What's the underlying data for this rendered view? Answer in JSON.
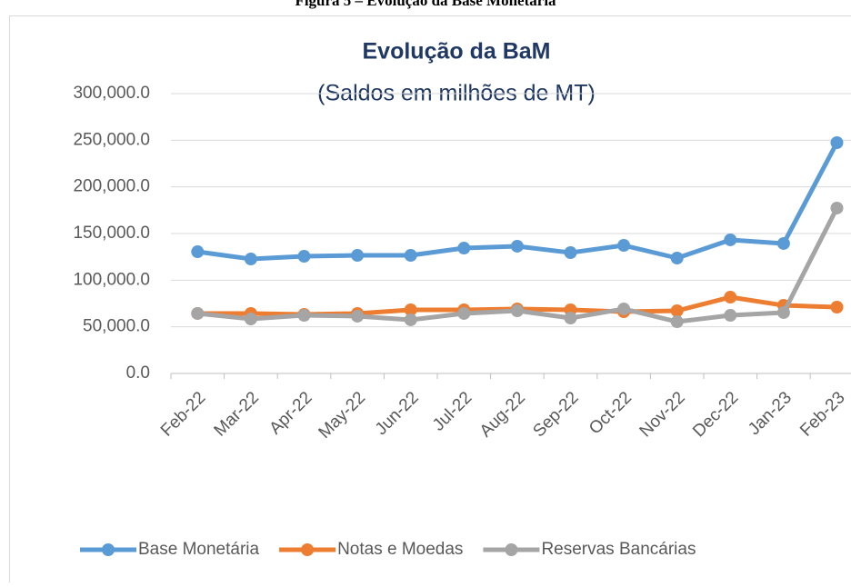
{
  "caption": "Figura 5 – Evolução da Base Monetária",
  "chart_data": {
    "type": "line",
    "title": "Evolução da BaM",
    "subtitle": "(Saldos em milhões de MT)",
    "categories": [
      "Feb-22",
      "Mar-22",
      "Apr-22",
      "May-22",
      "Jun-22",
      "Jul-22",
      "Aug-22",
      "Sep-22",
      "Oct-22",
      "Nov-22",
      "Dec-22",
      "Jan-23",
      "Feb-23"
    ],
    "series": [
      {
        "name": "Base Monetária",
        "color": "#5b9bd5",
        "values": [
          130500,
          122700,
          125600,
          126600,
          126600,
          134400,
          136400,
          129500,
          137300,
          123700,
          143200,
          139300,
          247400
        ]
      },
      {
        "name": "Notas e Moedas",
        "color": "#ed7d31",
        "values": [
          64300,
          64300,
          63300,
          64300,
          68200,
          68200,
          69200,
          68200,
          66200,
          67200,
          81800,
          73000,
          71100
        ]
      },
      {
        "name": "Reservas Bancárias",
        "color": "#a5a5a5",
        "values": [
          64300,
          58400,
          62300,
          61400,
          57500,
          64300,
          67200,
          59400,
          69200,
          55500,
          62300,
          65300,
          177300
        ]
      }
    ],
    "ylim": [
      0,
      300000
    ],
    "yticks": [
      {
        "value": 0,
        "label": "0.0"
      },
      {
        "value": 50000,
        "label": "50,000.0"
      },
      {
        "value": 100000,
        "label": "100,000.0"
      },
      {
        "value": 150000,
        "label": "150,000.0"
      },
      {
        "value": 200000,
        "label": "200,000.0"
      },
      {
        "value": 250000,
        "label": "250,000.0"
      },
      {
        "value": 300000,
        "label": "300,000.0"
      }
    ],
    "grid": true,
    "legend": "bottom"
  }
}
